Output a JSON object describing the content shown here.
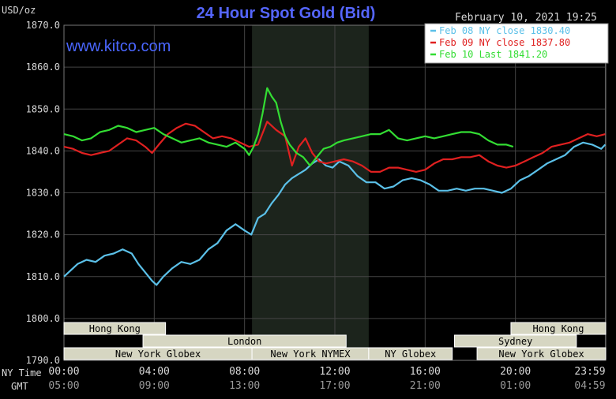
{
  "header": {
    "unit": "USD/oz",
    "title": "24 Hour Spot Gold (Bid)",
    "datetime": "February 10, 2021 19:25",
    "site": "www.kitco.com"
  },
  "colors": {
    "background": "#000000",
    "title": "#5566ff",
    "site": "#4a66ff",
    "axis_text": "#d8d8d8",
    "grid": "#444444",
    "nymex_shade": "#1c241c",
    "session_box_fill": "#d6d6c2",
    "session_box_text": "#000000",
    "session_box_border": "#ffffff",
    "legend_bg": "#ffffff"
  },
  "chart_data": {
    "type": "line",
    "title": "24 Hour Spot Gold (Bid)",
    "ylabel": "USD/oz",
    "xlabel": "",
    "ylim": [
      1790,
      1870
    ],
    "xlim": [
      0,
      24
    ],
    "grid": true,
    "legend_position": "top-right",
    "y_ticks": [
      "1870.0",
      "1860.0",
      "1850.0",
      "1840.0",
      "1830.0",
      "1820.0",
      "1810.0",
      "1800.0",
      "1790.0"
    ],
    "x_ticks_ny": [
      "00:00",
      "04:00",
      "08:00",
      "12:00",
      "16:00",
      "20:00",
      "23:59"
    ],
    "x_ticks_gmt": [
      "05:00",
      "09:00",
      "13:00",
      "17:00",
      "21:00",
      "01:00",
      "04:59"
    ],
    "x_tick_positions": [
      0,
      4,
      8,
      12,
      16,
      20,
      23.98
    ],
    "row_labels": {
      "ny": "NY Time",
      "gmt": "GMT"
    },
    "nymex_shade_hours": [
      8.33,
      13.5
    ],
    "series": [
      {
        "name": "Feb 08 NY close 1830.40",
        "color": "#5bc0e8",
        "x": [
          0,
          0.3,
          0.6,
          1.0,
          1.4,
          1.8,
          2.2,
          2.6,
          3.0,
          3.3,
          3.6,
          3.9,
          4.1,
          4.4,
          4.8,
          5.2,
          5.6,
          6.0,
          6.4,
          6.8,
          7.2,
          7.6,
          8.0,
          8.3,
          8.6,
          8.9,
          9.2,
          9.5,
          9.8,
          10.1,
          10.4,
          10.7,
          11.0,
          11.3,
          11.6,
          11.9,
          12.2,
          12.6,
          13.0,
          13.4,
          13.8,
          14.2,
          14.6,
          15.0,
          15.4,
          15.8,
          16.2,
          16.6,
          17.0,
          17.4,
          17.8,
          18.2,
          18.6,
          19.0,
          19.4,
          19.8,
          20.2,
          20.6,
          21.0,
          21.4,
          21.8,
          22.2,
          22.6,
          23.0,
          23.4,
          23.8,
          23.98
        ],
        "y": [
          1810,
          1811.5,
          1813,
          1814,
          1813.5,
          1815,
          1815.5,
          1816.5,
          1815.5,
          1813,
          1811,
          1809,
          1808,
          1810,
          1812,
          1813.5,
          1813,
          1814,
          1816.5,
          1818,
          1821,
          1822.5,
          1821,
          1820,
          1824,
          1825,
          1827.5,
          1829.5,
          1832,
          1833.5,
          1834.5,
          1835.5,
          1837,
          1838,
          1836.5,
          1836,
          1837.5,
          1836.5,
          1834,
          1832.5,
          1832.5,
          1831,
          1831.5,
          1833,
          1833.5,
          1833,
          1832,
          1830.5,
          1830.5,
          1831,
          1830.5,
          1831,
          1831,
          1830.5,
          1830,
          1831,
          1833,
          1834,
          1835.5,
          1837,
          1838,
          1839,
          1841,
          1842,
          1841.5,
          1840.5,
          1841.5
        ]
      },
      {
        "name": "Feb 09 NY close 1837.80",
        "color": "#e02020",
        "x": [
          0,
          0.4,
          0.8,
          1.2,
          1.6,
          2.0,
          2.4,
          2.8,
          3.2,
          3.6,
          3.9,
          4.2,
          4.6,
          5.0,
          5.4,
          5.8,
          6.2,
          6.6,
          7.0,
          7.4,
          7.8,
          8.2,
          8.6,
          9.0,
          9.4,
          9.8,
          10.1,
          10.4,
          10.7,
          11.0,
          11.3,
          11.6,
          12.0,
          12.4,
          12.8,
          13.2,
          13.6,
          14.0,
          14.4,
          14.8,
          15.2,
          15.6,
          16.0,
          16.4,
          16.8,
          17.2,
          17.6,
          18.0,
          18.4,
          18.8,
          19.2,
          19.6,
          20.0,
          20.4,
          20.8,
          21.2,
          21.6,
          22.0,
          22.4,
          22.8,
          23.2,
          23.6,
          23.98
        ],
        "y": [
          1841,
          1840.5,
          1839.5,
          1839,
          1839.5,
          1840,
          1841.5,
          1843,
          1842.5,
          1841,
          1839.5,
          1841.5,
          1844,
          1845.5,
          1846.5,
          1846,
          1844.5,
          1843,
          1843.5,
          1843,
          1842,
          1841,
          1841.5,
          1847,
          1845,
          1843.5,
          1836.5,
          1841,
          1843,
          1839.5,
          1837.5,
          1837,
          1837.5,
          1838,
          1837.5,
          1836.5,
          1835,
          1835,
          1836,
          1836,
          1835.5,
          1835,
          1835.5,
          1837,
          1838,
          1838,
          1838.5,
          1838.5,
          1839,
          1837.5,
          1836.5,
          1836,
          1836.5,
          1837.5,
          1838.5,
          1839.5,
          1841,
          1841.5,
          1842,
          1843,
          1844,
          1843.5,
          1844
        ]
      },
      {
        "name": "Feb 10 Last 1841.20",
        "color": "#33dd33",
        "x": [
          0,
          0.4,
          0.8,
          1.2,
          1.6,
          2.0,
          2.4,
          2.8,
          3.2,
          3.6,
          4.0,
          4.4,
          4.8,
          5.2,
          5.6,
          6.0,
          6.4,
          6.8,
          7.2,
          7.6,
          8.0,
          8.2,
          8.4,
          8.6,
          8.8,
          9.0,
          9.2,
          9.4,
          9.6,
          9.8,
          10.0,
          10.3,
          10.6,
          10.9,
          11.2,
          11.5,
          11.8,
          12.1,
          12.4,
          12.8,
          13.2,
          13.6,
          14.0,
          14.4,
          14.8,
          15.2,
          15.6,
          16.0,
          16.4,
          16.8,
          17.2,
          17.6,
          18.0,
          18.4,
          18.8,
          19.2,
          19.6,
          19.9
        ],
        "y": [
          1844,
          1843.5,
          1842.5,
          1843,
          1844.5,
          1845,
          1846,
          1845.5,
          1844.5,
          1845,
          1845.5,
          1844,
          1843,
          1842,
          1842.5,
          1843,
          1842,
          1841.5,
          1841,
          1842,
          1840.5,
          1839,
          1841,
          1844,
          1849,
          1855,
          1853,
          1851.5,
          1847,
          1843.5,
          1841.5,
          1839.5,
          1838.5,
          1836.5,
          1838.5,
          1840.5,
          1841,
          1842,
          1842.5,
          1843,
          1843.5,
          1844,
          1844,
          1845,
          1843,
          1842.5,
          1843,
          1843.5,
          1843,
          1843.5,
          1844,
          1844.5,
          1844.5,
          1844,
          1842.5,
          1841.5,
          1841.5,
          1841
        ]
      }
    ]
  },
  "sessions": [
    {
      "name": "Hong Kong",
      "row": 0,
      "start": 0,
      "end": 4.5
    },
    {
      "name": "Hong Kong",
      "row": 0,
      "start": 19.8,
      "end": 24
    },
    {
      "name": "London",
      "row": 1,
      "start": 3.5,
      "end": 12.5
    },
    {
      "name": "Sydney",
      "row": 1,
      "start": 17.3,
      "end": 22.7
    },
    {
      "name": "New York Globex",
      "row": 2,
      "start": 0,
      "end": 8.33
    },
    {
      "name": "New York NYMEX",
      "row": 2,
      "start": 8.33,
      "end": 13.5
    },
    {
      "name": "NY Globex",
      "row": 2,
      "start": 13.5,
      "end": 17.2
    },
    {
      "name": "New York Globex",
      "row": 2,
      "start": 18.3,
      "end": 24
    }
  ]
}
